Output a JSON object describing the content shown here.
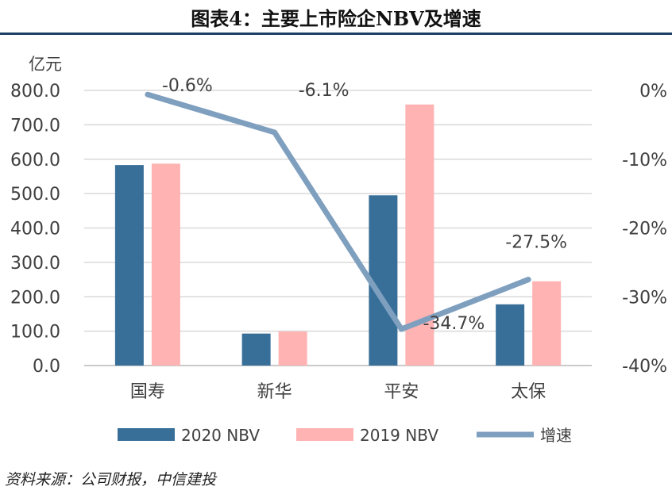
{
  "title": "图表4：主要上市险企NBV及增速",
  "source": "资料来源：公司财报，中信建投",
  "chart_data": {
    "type": "bar",
    "categories": [
      "国寿",
      "新华",
      "平安",
      "太保"
    ],
    "y_unit": "亿元",
    "ylim": [
      0,
      800
    ],
    "y_ticks": [
      "0.0",
      "100.0",
      "200.0",
      "300.0",
      "400.0",
      "500.0",
      "600.0",
      "700.0",
      "800.0"
    ],
    "y2lim": [
      -40,
      0
    ],
    "y2_ticks": [
      "-40%",
      "-30%",
      "-20%",
      "-10%",
      "0%"
    ],
    "grid": true,
    "legend_position": "bottom",
    "series": [
      {
        "name": "2020 NBV",
        "type": "bar",
        "axis": "left",
        "color": "#376f99",
        "values": [
          583,
          93,
          495,
          178
        ]
      },
      {
        "name": "2019 NBV",
        "type": "bar",
        "axis": "right",
        "color": "#ffb3b3",
        "values": [
          587,
          99,
          759,
          245
        ]
      },
      {
        "name": "增速",
        "type": "line",
        "axis": "right",
        "color": "#7f9fbf",
        "values": [
          -0.6,
          -6.1,
          -34.7,
          -27.5
        ],
        "labels": [
          "-0.6%",
          "-6.1%",
          "-34.7%",
          "-27.5%"
        ]
      }
    ]
  }
}
